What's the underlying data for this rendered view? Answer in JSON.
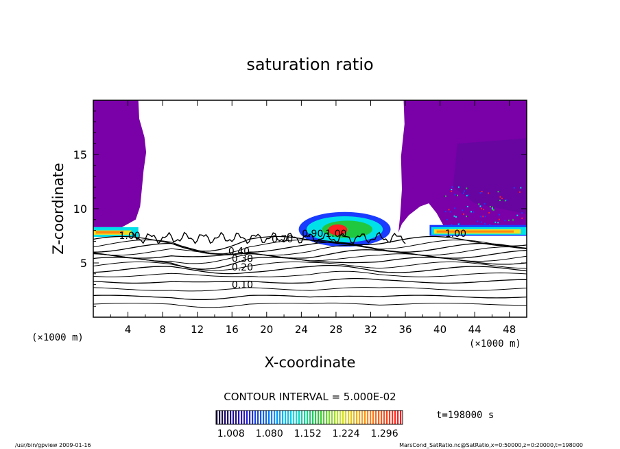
{
  "chart_data": {
    "type": "heatmap",
    "title": "saturation ratio",
    "xlabel": "X-coordinate",
    "ylabel": "Z-coordinate",
    "x_unit_left": "(×1000 m)",
    "x_unit_right": "(×1000 m)",
    "xlim": [
      0,
      50
    ],
    "ylim": [
      0,
      20
    ],
    "x_ticks": [
      "4",
      "8",
      "12",
      "16",
      "20",
      "24",
      "28",
      "32",
      "36",
      "40",
      "44",
      "48"
    ],
    "x_tick_values": [
      4,
      8,
      12,
      16,
      20,
      24,
      28,
      32,
      36,
      40,
      44,
      48
    ],
    "y_ticks": [
      "5",
      "10",
      "15"
    ],
    "y_tick_values": [
      5,
      10,
      15
    ],
    "contour_interval_text": "CONTOUR INTERVAL = 5.000E-02",
    "time_text": "t=198000 s",
    "colorbar_labels": [
      "1.008",
      "1.080",
      "1.152",
      "1.224",
      "1.296"
    ],
    "colorbar_values": [
      1.008,
      1.08,
      1.152,
      1.224,
      1.296
    ],
    "colorbar_range": [
      0.98,
      1.33
    ],
    "contour_labels": [
      {
        "text": "1.00",
        "x": 4.2,
        "z": 7.2
      },
      {
        "text": "0.70",
        "x": 21.8,
        "z": 6.9
      },
      {
        "text": "0.90",
        "x": 25.3,
        "z": 7.4
      },
      {
        "text": "1.00",
        "x": 28.0,
        "z": 7.4
      },
      {
        "text": "1.00",
        "x": 41.8,
        "z": 7.4
      },
      {
        "text": "0.40",
        "x": 16.8,
        "z": 5.8
      },
      {
        "text": "0.30",
        "x": 17.2,
        "z": 5.1
      },
      {
        "text": "0.20",
        "x": 17.2,
        "z": 4.3
      },
      {
        "text": "0.10",
        "x": 17.2,
        "z": 2.7
      }
    ],
    "contour_levels_z": [
      1.2,
      1.9,
      2.6,
      3.3,
      3.9,
      4.4,
      4.8,
      5.2,
      5.5,
      5.8,
      6.1,
      6.4,
      6.7,
      7.0
    ],
    "grid": false,
    "legend": "bottom-center colorbar"
  },
  "footer": {
    "left": "/usr/bin/gpview  2009-01-16",
    "right": "MarsCond_SatRatio.nc@SatRatio,x=0:50000,z=0:20000,t=198000"
  },
  "colors": {
    "purple": "#7a00a8",
    "dark_purple": "#5a0a9a",
    "blue": "#1a3cff",
    "cyan": "#00e0e8",
    "green": "#20c840",
    "yellow": "#f0e020",
    "orange": "#ff8a10",
    "red": "#ff2020"
  }
}
